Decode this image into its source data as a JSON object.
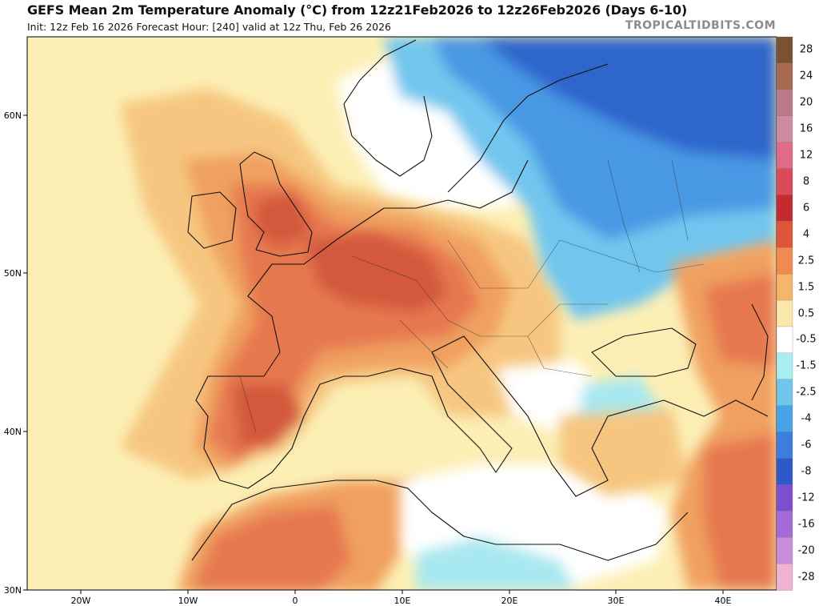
{
  "header": {
    "title": "GEFS Mean 2m Temperature Anomaly (°C) from 12z21Feb2026 to 12z26Feb2026 (Days 6-10)",
    "subtitle": "Init: 12z Feb 16 2026   Forecast Hour: [240]   valid at 12z Thu, Feb 26 2026",
    "brand": "TROPICALTIDBITS.COM"
  },
  "axes": {
    "lat_labels": [
      "60N",
      "50N",
      "40N",
      "30N"
    ],
    "lon_labels": [
      "20W",
      "10W",
      "0",
      "10E",
      "20E",
      "30E",
      "40E"
    ]
  },
  "legend": {
    "labels": [
      "28",
      "24",
      "20",
      "16",
      "12",
      "8",
      "6",
      "4",
      "2.5",
      "1.5",
      "0.5",
      "-0.5",
      "-1.5",
      "-2.5",
      "-4",
      "-6",
      "-8",
      "-12",
      "-16",
      "-20",
      "-28"
    ],
    "colors": [
      "#7a5230",
      "#a86a4e",
      "#b97a8a",
      "#cf8aa3",
      "#e06a88",
      "#dc4a5a",
      "#c42a30",
      "#e0553a",
      "#f08a50",
      "#f6b66a",
      "#fbe7a8",
      "#ffffff",
      "#a8eef0",
      "#6fc6ea",
      "#48a4e8",
      "#3c7ee0",
      "#2f58c8",
      "#7d4fd0",
      "#a56ad8",
      "#c88fd8",
      "#f1b3d2"
    ]
  },
  "map_colors": {
    "ocean_warm": "#fcefb4",
    "warm1": "#f6c680",
    "warm2": "#f0a060",
    "warm3": "#e67850",
    "warm4": "#d4583c",
    "neutral": "#ffffff",
    "cool1": "#a8e8f0",
    "cool2": "#72c6ee",
    "cool3": "#4a98e4",
    "cool4": "#2f66cc"
  }
}
